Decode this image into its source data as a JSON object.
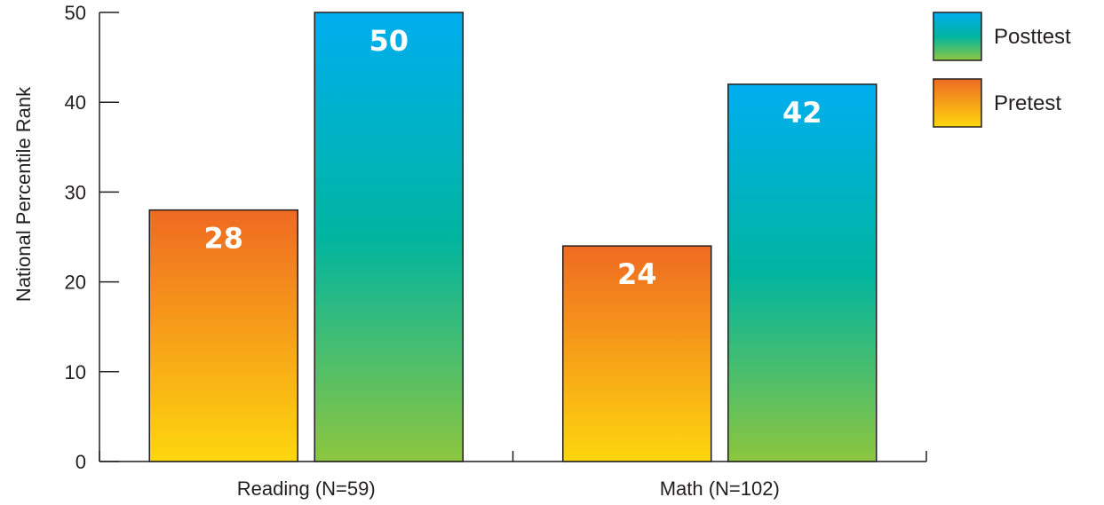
{
  "chart_data": {
    "type": "bar",
    "categories": [
      "Reading (N=59)",
      "Math (N=102)"
    ],
    "series": [
      {
        "name": "Pretest",
        "values": [
          28,
          24
        ],
        "colors": [
          "#ef6a22",
          "#fdd70e"
        ]
      },
      {
        "name": "Posttest",
        "values": [
          50,
          42
        ],
        "colors": [
          "#00aeef",
          "#00b5a0",
          "#8dc63f"
        ]
      }
    ],
    "ylabel": "National Percentile Rank",
    "xlabel": "",
    "ylim": [
      0,
      50
    ],
    "yticks": [
      0,
      10,
      20,
      30,
      40,
      50
    ],
    "legend": {
      "placement": "top-right",
      "order": [
        "Posttest",
        "Pretest"
      ]
    },
    "grid": false,
    "data_labels": true
  }
}
